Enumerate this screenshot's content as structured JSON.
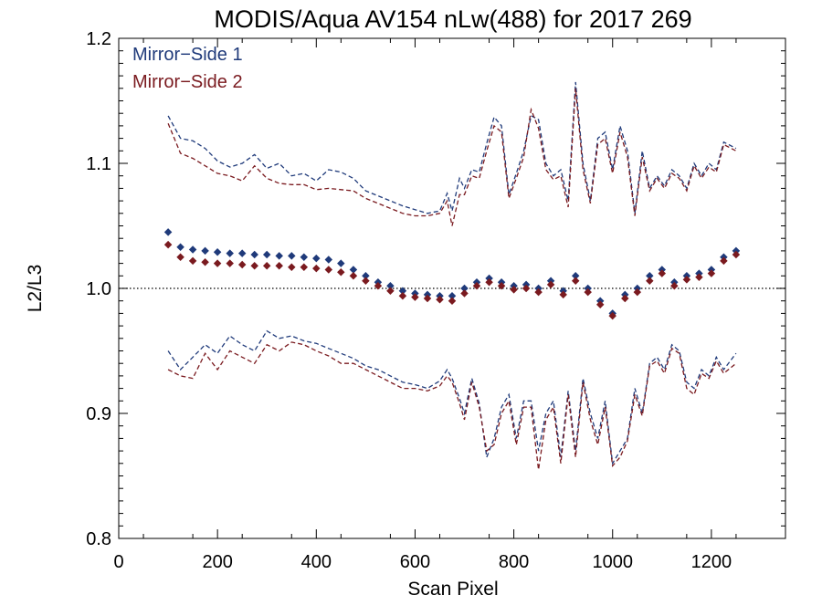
{
  "chart_data": {
    "type": "scatter",
    "title": "MODIS/Aqua AV154 nLw(488) for 2017 269",
    "xlabel": "Scan Pixel",
    "ylabel": "L2/L3",
    "xlim": [
      0,
      1350
    ],
    "ylim": [
      0.8,
      1.2
    ],
    "x_ticks": [
      0,
      200,
      400,
      600,
      800,
      1000,
      1200
    ],
    "y_ticks": [
      0.8,
      0.9,
      1.0,
      1.1,
      1.2
    ],
    "x_tick_labels": [
      "0",
      "200",
      "400",
      "600",
      "800",
      "1000",
      "1200"
    ],
    "y_tick_labels": [
      "0.8",
      "0.9",
      "1.0",
      "1.1",
      "1.2"
    ],
    "legend_position": "top-left",
    "reference_line": 1.0,
    "series": [
      {
        "name": "Mirror−Side 1",
        "color": "#1f3a7a",
        "points_x": [
          100,
          125,
          150,
          175,
          200,
          225,
          250,
          275,
          300,
          325,
          350,
          375,
          400,
          425,
          450,
          475,
          500,
          525,
          550,
          575,
          600,
          625,
          650,
          675,
          700,
          725,
          750,
          775,
          800,
          825,
          850,
          875,
          900,
          925,
          950,
          975,
          1000,
          1025,
          1050,
          1075,
          1100,
          1125,
          1150,
          1175,
          1200,
          1225,
          1250
        ],
        "points_y": [
          1.045,
          1.033,
          1.031,
          1.03,
          1.029,
          1.028,
          1.028,
          1.027,
          1.027,
          1.026,
          1.026,
          1.025,
          1.024,
          1.023,
          1.02,
          1.015,
          1.01,
          1.005,
          1.002,
          0.998,
          0.996,
          0.995,
          0.994,
          0.994,
          1.0,
          1.005,
          1.008,
          1.005,
          1.002,
          1.003,
          1.0,
          1.006,
          0.998,
          1.01,
          1.0,
          0.99,
          0.98,
          0.995,
          1.0,
          1.01,
          1.015,
          1.005,
          1.01,
          1.012,
          1.015,
          1.025,
          1.03
        ],
        "upper_x": [
          100,
          125,
          150,
          175,
          200,
          225,
          250,
          275,
          300,
          325,
          350,
          375,
          400,
          425,
          450,
          475,
          500,
          525,
          550,
          575,
          600,
          625,
          650,
          665,
          675,
          690,
          700,
          715,
          730,
          745,
          760,
          775,
          790,
          805,
          820,
          835,
          850,
          865,
          880,
          895,
          910,
          925,
          940,
          955,
          970,
          985,
          1000,
          1015,
          1030,
          1045,
          1060,
          1075,
          1090,
          1105,
          1120,
          1135,
          1150,
          1165,
          1180,
          1195,
          1210,
          1225,
          1250
        ],
        "upper_y": [
          1.138,
          1.12,
          1.118,
          1.112,
          1.102,
          1.097,
          1.1,
          1.107,
          1.096,
          1.1,
          1.09,
          1.092,
          1.086,
          1.095,
          1.093,
          1.088,
          1.078,
          1.074,
          1.07,
          1.066,
          1.063,
          1.06,
          1.062,
          1.076,
          1.062,
          1.088,
          1.08,
          1.095,
          1.093,
          1.116,
          1.137,
          1.13,
          1.075,
          1.092,
          1.11,
          1.138,
          1.135,
          1.1,
          1.09,
          1.095,
          1.07,
          1.165,
          1.1,
          1.07,
          1.12,
          1.125,
          1.095,
          1.13,
          1.11,
          1.06,
          1.11,
          1.08,
          1.09,
          1.082,
          1.095,
          1.09,
          1.08,
          1.1,
          1.09,
          1.1,
          1.095,
          1.117,
          1.112
        ],
        "lower_x": [
          100,
          125,
          150,
          175,
          200,
          225,
          250,
          275,
          300,
          325,
          350,
          375,
          400,
          425,
          450,
          475,
          500,
          525,
          550,
          575,
          600,
          625,
          650,
          665,
          675,
          690,
          700,
          715,
          730,
          745,
          760,
          775,
          790,
          805,
          820,
          835,
          850,
          865,
          880,
          895,
          910,
          925,
          940,
          955,
          970,
          985,
          1000,
          1015,
          1030,
          1045,
          1060,
          1075,
          1090,
          1105,
          1120,
          1135,
          1150,
          1165,
          1180,
          1195,
          1210,
          1225,
          1250
        ],
        "lower_y": [
          0.95,
          0.935,
          0.945,
          0.955,
          0.948,
          0.962,
          0.955,
          0.95,
          0.966,
          0.96,
          0.962,
          0.958,
          0.956,
          0.952,
          0.948,
          0.944,
          0.938,
          0.935,
          0.93,
          0.925,
          0.923,
          0.92,
          0.926,
          0.935,
          0.928,
          0.912,
          0.9,
          0.928,
          0.908,
          0.865,
          0.88,
          0.905,
          0.915,
          0.88,
          0.91,
          0.91,
          0.87,
          0.9,
          0.91,
          0.865,
          0.918,
          0.87,
          0.928,
          0.9,
          0.88,
          0.91,
          0.86,
          0.87,
          0.88,
          0.92,
          0.9,
          0.94,
          0.945,
          0.935,
          0.955,
          0.95,
          0.925,
          0.92,
          0.935,
          0.93,
          0.945,
          0.935,
          0.948
        ]
      },
      {
        "name": "Mirror−Side 2",
        "color": "#7a1a1f",
        "points_x": [
          100,
          125,
          150,
          175,
          200,
          225,
          250,
          275,
          300,
          325,
          350,
          375,
          400,
          425,
          450,
          475,
          500,
          525,
          550,
          575,
          600,
          625,
          650,
          675,
          700,
          725,
          750,
          775,
          800,
          825,
          850,
          875,
          900,
          925,
          950,
          975,
          1000,
          1025,
          1050,
          1075,
          1100,
          1125,
          1150,
          1175,
          1200,
          1225,
          1250
        ],
        "points_y": [
          1.035,
          1.025,
          1.022,
          1.021,
          1.02,
          1.02,
          1.019,
          1.018,
          1.018,
          1.018,
          1.017,
          1.017,
          1.016,
          1.015,
          1.013,
          1.01,
          1.006,
          1.002,
          0.998,
          0.994,
          0.993,
          0.992,
          0.991,
          0.99,
          0.996,
          1.002,
          1.005,
          1.002,
          0.999,
          1.0,
          0.997,
          1.003,
          0.995,
          1.006,
          0.997,
          0.987,
          0.978,
          0.992,
          0.997,
          1.006,
          1.012,
          1.002,
          1.007,
          1.009,
          1.012,
          1.022,
          1.027
        ],
        "upper_x": [
          100,
          125,
          150,
          175,
          200,
          225,
          250,
          275,
          300,
          325,
          350,
          375,
          400,
          425,
          450,
          475,
          500,
          525,
          550,
          575,
          600,
          625,
          650,
          665,
          675,
          690,
          700,
          715,
          730,
          745,
          760,
          775,
          790,
          805,
          820,
          835,
          850,
          865,
          880,
          895,
          910,
          925,
          940,
          955,
          970,
          985,
          1000,
          1015,
          1030,
          1045,
          1060,
          1075,
          1090,
          1105,
          1120,
          1135,
          1150,
          1165,
          1180,
          1195,
          1210,
          1225,
          1250
        ],
        "upper_y": [
          1.132,
          1.108,
          1.104,
          1.098,
          1.092,
          1.09,
          1.086,
          1.098,
          1.088,
          1.084,
          1.083,
          1.083,
          1.079,
          1.08,
          1.079,
          1.078,
          1.072,
          1.068,
          1.064,
          1.06,
          1.058,
          1.058,
          1.06,
          1.07,
          1.05,
          1.075,
          1.075,
          1.09,
          1.088,
          1.11,
          1.13,
          1.125,
          1.072,
          1.088,
          1.105,
          1.143,
          1.128,
          1.095,
          1.087,
          1.09,
          1.065,
          1.16,
          1.095,
          1.068,
          1.115,
          1.12,
          1.092,
          1.125,
          1.105,
          1.058,
          1.105,
          1.078,
          1.088,
          1.08,
          1.092,
          1.088,
          1.078,
          1.098,
          1.088,
          1.097,
          1.093,
          1.115,
          1.11
        ],
        "lower_x": [
          100,
          125,
          150,
          175,
          200,
          225,
          250,
          275,
          300,
          325,
          350,
          375,
          400,
          425,
          450,
          475,
          500,
          525,
          550,
          575,
          600,
          625,
          650,
          665,
          675,
          690,
          700,
          715,
          730,
          745,
          760,
          775,
          790,
          805,
          820,
          835,
          850,
          865,
          880,
          895,
          910,
          925,
          940,
          955,
          970,
          985,
          1000,
          1015,
          1030,
          1045,
          1060,
          1075,
          1090,
          1105,
          1120,
          1135,
          1150,
          1165,
          1180,
          1195,
          1210,
          1225,
          1250
        ],
        "lower_y": [
          0.935,
          0.93,
          0.928,
          0.948,
          0.935,
          0.95,
          0.945,
          0.94,
          0.955,
          0.95,
          0.957,
          0.955,
          0.95,
          0.946,
          0.94,
          0.94,
          0.935,
          0.93,
          0.925,
          0.92,
          0.92,
          0.918,
          0.922,
          0.93,
          0.925,
          0.908,
          0.895,
          0.925,
          0.905,
          0.87,
          0.875,
          0.9,
          0.91,
          0.875,
          0.905,
          0.905,
          0.855,
          0.895,
          0.905,
          0.86,
          0.915,
          0.865,
          0.925,
          0.895,
          0.875,
          0.905,
          0.858,
          0.865,
          0.878,
          0.915,
          0.898,
          0.938,
          0.942,
          0.932,
          0.952,
          0.948,
          0.92,
          0.915,
          0.932,
          0.928,
          0.942,
          0.932,
          0.94
        ]
      }
    ]
  }
}
